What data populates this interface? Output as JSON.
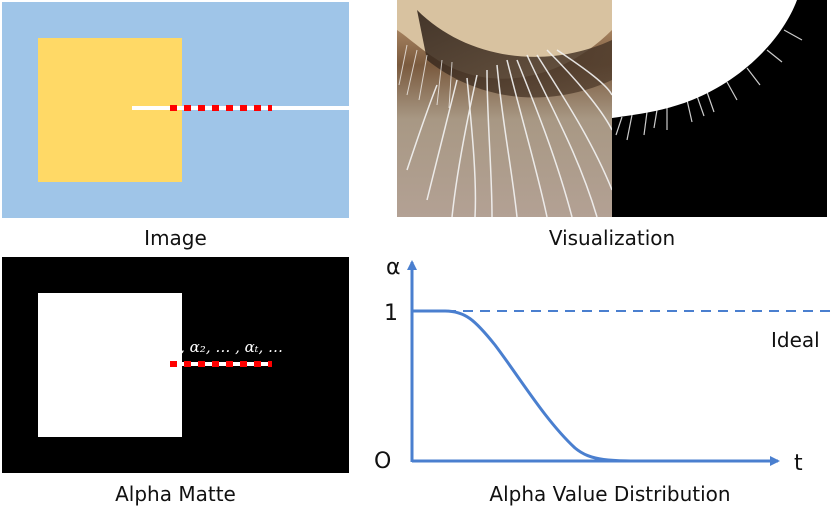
{
  "captions": {
    "image": "Image",
    "visualization": "Visualization",
    "alpha_matte": "Alpha Matte",
    "alpha_distribution": "Alpha Value Distribution"
  },
  "alpha_labels": {
    "sequence": "α₁, α₂, … , αₜ, …"
  },
  "graph": {
    "y_axis_label": "α",
    "x_axis_label": "t",
    "y_tick_top": "1",
    "y_tick_bottom": "O",
    "ideal_label": "Ideal"
  },
  "colors": {
    "sky_blue": "#9fc5e8",
    "yellow": "#ffd966",
    "red_dash": "#ff0000",
    "curve_blue": "#4a7fcf"
  }
}
